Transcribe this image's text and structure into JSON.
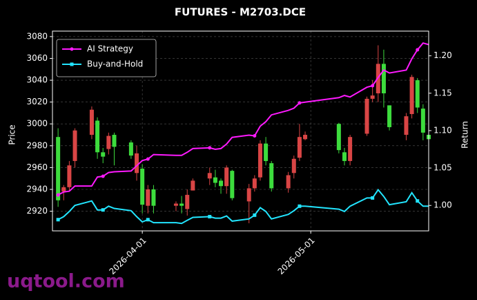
{
  "chart_data": {
    "type": "candlestick",
    "title": "FUTURES - M2703.DCE",
    "y_label": "Price",
    "y2_label": "Return",
    "watermark": "uqtool.com",
    "x": [
      "2026-03-17",
      "2026-03-18",
      "2026-03-19",
      "2026-03-20",
      "2026-03-23",
      "2026-03-24",
      "2026-03-25",
      "2026-03-26",
      "2026-03-27",
      "2026-03-30",
      "2026-03-31",
      "2026-04-01",
      "2026-04-02",
      "2026-04-03",
      "2026-04-07",
      "2026-04-08",
      "2026-04-09",
      "2026-04-10",
      "2026-04-13",
      "2026-04-14",
      "2026-04-15",
      "2026-04-16",
      "2026-04-17",
      "2026-04-20",
      "2026-04-21",
      "2026-04-22",
      "2026-04-23",
      "2026-04-24",
      "2026-04-27",
      "2026-04-28",
      "2026-04-29",
      "2026-04-30",
      "2026-05-06",
      "2026-05-07",
      "2026-05-08",
      "2026-05-11",
      "2026-05-12",
      "2026-05-13",
      "2026-05-14",
      "2026-05-15",
      "2026-05-18",
      "2026-05-19",
      "2026-05-20",
      "2026-05-21",
      "2026-05-22"
    ],
    "open": [
      2930,
      2942,
      2962,
      2994,
      3013,
      2974,
      2970,
      2989,
      2979,
      2971,
      2973,
      2926,
      2940,
      2925,
      2927,
      2925,
      2935,
      2948,
      2955,
      2946,
      2943,
      2960,
      2932,
      2941,
      2950,
      2982,
      2966,
      2941,
      2953,
      2968,
      2988,
      2990,
      2976,
      2966,
      2988,
      3023,
      3026,
      3055,
      3028,
      2997,
      3007,
      3043,
      3015,
      2992,
      2986
    ],
    "high": [
      2996,
      2944,
      2966,
      2996,
      3016,
      3006,
      2978,
      2992,
      2992,
      2985,
      2980,
      2963,
      2944,
      2944,
      2929,
      2934,
      2940,
      2950,
      2960,
      2958,
      2950,
      2962,
      2958,
      2945,
      2953,
      2985,
      2988,
      2966,
      2956,
      2971,
      3000,
      2993,
      3001,
      2978,
      2990,
      3025,
      3040,
      3072,
      3068,
      3017,
      3010,
      3045,
      3042,
      3018,
      2993
    ],
    "low": [
      2924,
      2930,
      2938,
      2960,
      2986,
      2968,
      2964,
      2972,
      2962,
      2968,
      2948,
      2918,
      2918,
      2918,
      2920,
      2918,
      2916,
      2939,
      2944,
      2942,
      2936,
      2936,
      2930,
      2909,
      2938,
      2948,
      2962,
      2938,
      2937,
      2950,
      2966,
      2985,
      2973,
      2962,
      2962,
      2989,
      3020,
      3020,
      3015,
      2994,
      2985,
      3005,
      3010,
      2985,
      2983
    ],
    "close": [
      2988,
      2938,
      2942,
      2966,
      2990,
      3003,
      2974,
      2977,
      2990,
      2983,
      2955,
      2959,
      2925,
      2940,
      2925,
      2927,
      2922,
      2939,
      2950,
      2951,
      2948,
      2943,
      2957,
      2929,
      2941,
      2951,
      2982,
      2964,
      2941,
      2955,
      2969,
      2986,
      3000,
      2974,
      2966,
      2991,
      3023,
      3028,
      3055,
      3017,
      2990,
      3009,
      3040,
      3014,
      2990
    ],
    "up_color": "#3ddc3d",
    "down_color": "#d94545",
    "series": [
      {
        "name": "AI Strategy",
        "color": "#ff1aff",
        "axis": "y2",
        "marker": "circle",
        "values": [
          1.014,
          1.018,
          1.019,
          1.026,
          1.026,
          1.038,
          1.039,
          1.044,
          1.045,
          1.046,
          1.053,
          1.06,
          1.062,
          1.068,
          1.067,
          1.067,
          1.071,
          1.076,
          1.077,
          1.075,
          1.076,
          1.082,
          1.091,
          1.094,
          1.093,
          1.106,
          1.112,
          1.121,
          1.127,
          1.13,
          1.137,
          1.138,
          1.144,
          1.147,
          1.145,
          1.158,
          1.16,
          1.171,
          1.181,
          1.177,
          1.181,
          1.196,
          1.208,
          1.217,
          1.215
        ]
      },
      {
        "name": "Buy-and-Hold",
        "color": "#22e5ff",
        "axis": "y2",
        "marker": "square",
        "values": [
          0.981,
          0.985,
          0.992,
          1.0,
          1.006,
          0.994,
          0.994,
          0.999,
          0.996,
          0.993,
          0.985,
          0.978,
          0.981,
          0.977,
          0.977,
          0.976,
          0.98,
          0.984,
          0.985,
          0.983,
          0.983,
          0.986,
          0.979,
          0.982,
          0.987,
          0.997,
          0.992,
          0.982,
          0.988,
          0.993,
          0.999,
          0.999,
          0.995,
          0.992,
          0.999,
          1.01,
          1.01,
          1.021,
          1.012,
          1.001,
          1.005,
          1.017,
          1.006,
          0.999,
          0.999
        ]
      }
    ],
    "xlim": [
      "2026-03-16",
      "2026-05-22"
    ],
    "xticks": [
      "2026-04-01",
      "2026-05-01"
    ],
    "ylim": [
      2902,
      3085
    ],
    "yticks": [
      2920,
      2940,
      2960,
      2980,
      3000,
      3020,
      3040,
      3060,
      3080
    ],
    "y2lim": [
      0.966,
      1.233
    ],
    "y2ticks": [
      {
        "value": 1,
        "label": "1.00"
      },
      1.05,
      {
        "value": 1.1,
        "label": "1.10"
      },
      1.15,
      {
        "value": 1.2,
        "label": "1.20"
      }
    ],
    "grid": true,
    "legend": "upper left"
  }
}
